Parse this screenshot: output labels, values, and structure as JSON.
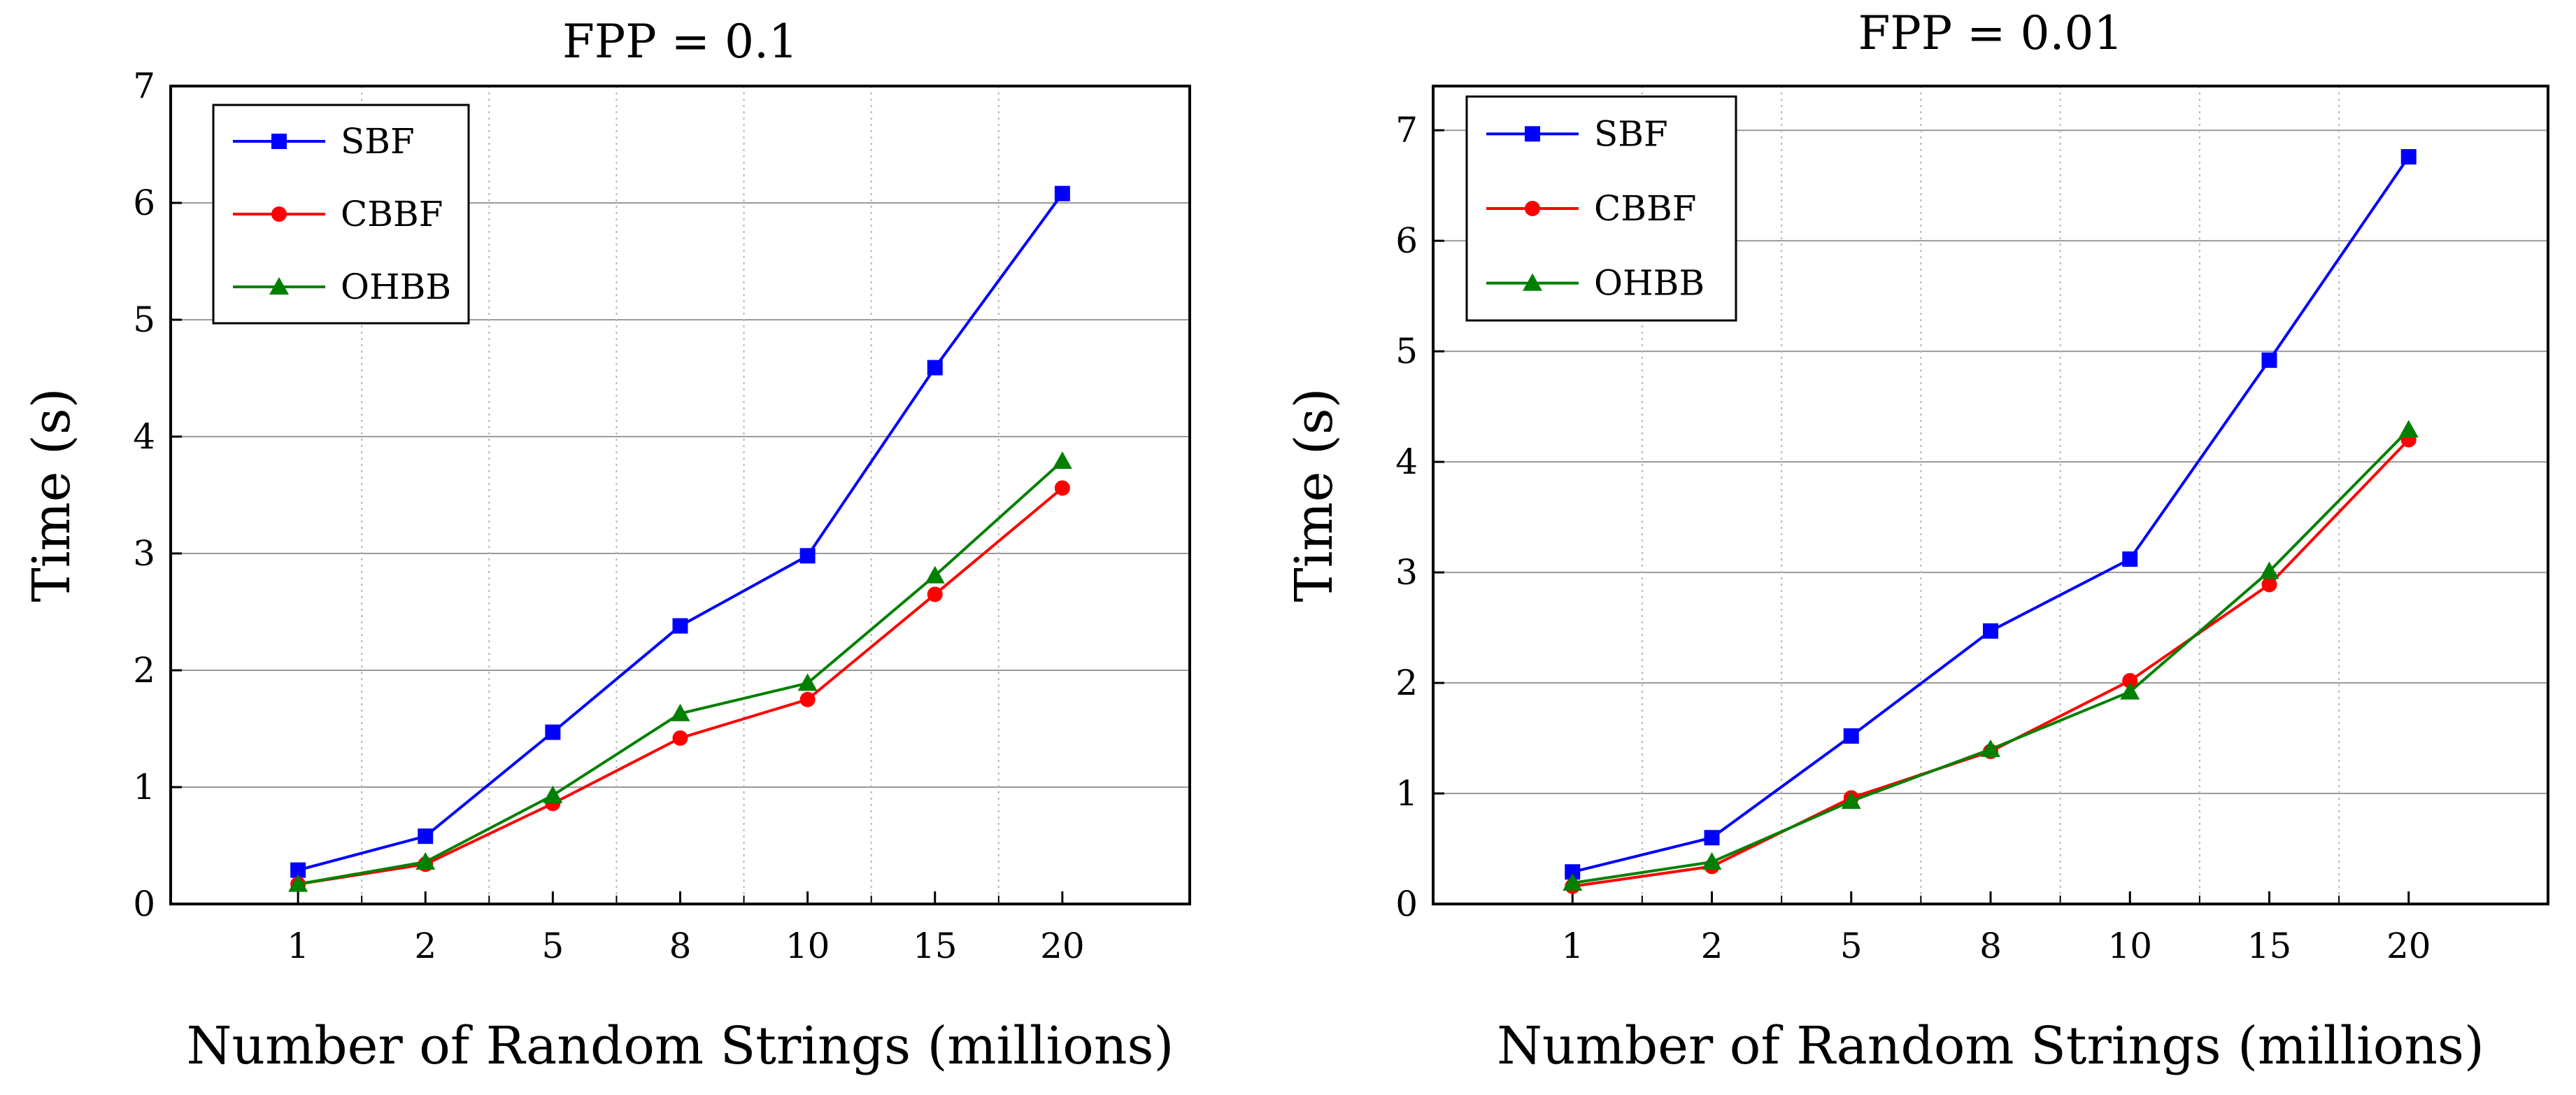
{
  "chart_data": [
    {
      "type": "line",
      "title": "FPP = 0.1",
      "xlabel": "Number of Random Strings (millions)",
      "ylabel": "Time (s)",
      "categories": [
        "1",
        "2",
        "5",
        "8",
        "10",
        "15",
        "20"
      ],
      "ylim": [
        0,
        7
      ],
      "yticks": [
        "0",
        "1",
        "2",
        "3",
        "4",
        "5",
        "6",
        "7"
      ],
      "grid": true,
      "legend_position": "top-left",
      "series": [
        {
          "name": "SBF",
          "color": "#0000ff",
          "marker": "square",
          "values": [
            0.29,
            0.58,
            1.47,
            2.38,
            2.98,
            4.59,
            6.08
          ]
        },
        {
          "name": "CBBF",
          "color": "#ff0000",
          "marker": "circle",
          "values": [
            0.17,
            0.34,
            0.86,
            1.42,
            1.75,
            2.65,
            3.56
          ]
        },
        {
          "name": "OHBB",
          "color": "#008000",
          "marker": "triangle",
          "values": [
            0.17,
            0.36,
            0.93,
            1.63,
            1.89,
            2.81,
            3.79
          ]
        }
      ]
    },
    {
      "type": "line",
      "title": "FPP = 0.01",
      "xlabel": "Number of Random Strings (millions)",
      "ylabel": "Time (s)",
      "categories": [
        "1",
        "2",
        "5",
        "8",
        "10",
        "15",
        "20"
      ],
      "ylim": [
        0,
        7.4
      ],
      "yticks": [
        "0",
        "1",
        "2",
        "3",
        "4",
        "5",
        "6",
        "7"
      ],
      "grid": true,
      "legend_position": "top-left",
      "series": [
        {
          "name": "SBF",
          "color": "#0000ff",
          "marker": "square",
          "values": [
            0.29,
            0.6,
            1.52,
            2.47,
            3.12,
            4.92,
            6.76
          ]
        },
        {
          "name": "CBBF",
          "color": "#ff0000",
          "marker": "circle",
          "values": [
            0.16,
            0.34,
            0.96,
            1.38,
            2.02,
            2.89,
            4.2
          ]
        },
        {
          "name": "OHBB",
          "color": "#008000",
          "marker": "triangle",
          "values": [
            0.19,
            0.38,
            0.93,
            1.4,
            1.92,
            3.01,
            4.29
          ]
        }
      ]
    }
  ]
}
